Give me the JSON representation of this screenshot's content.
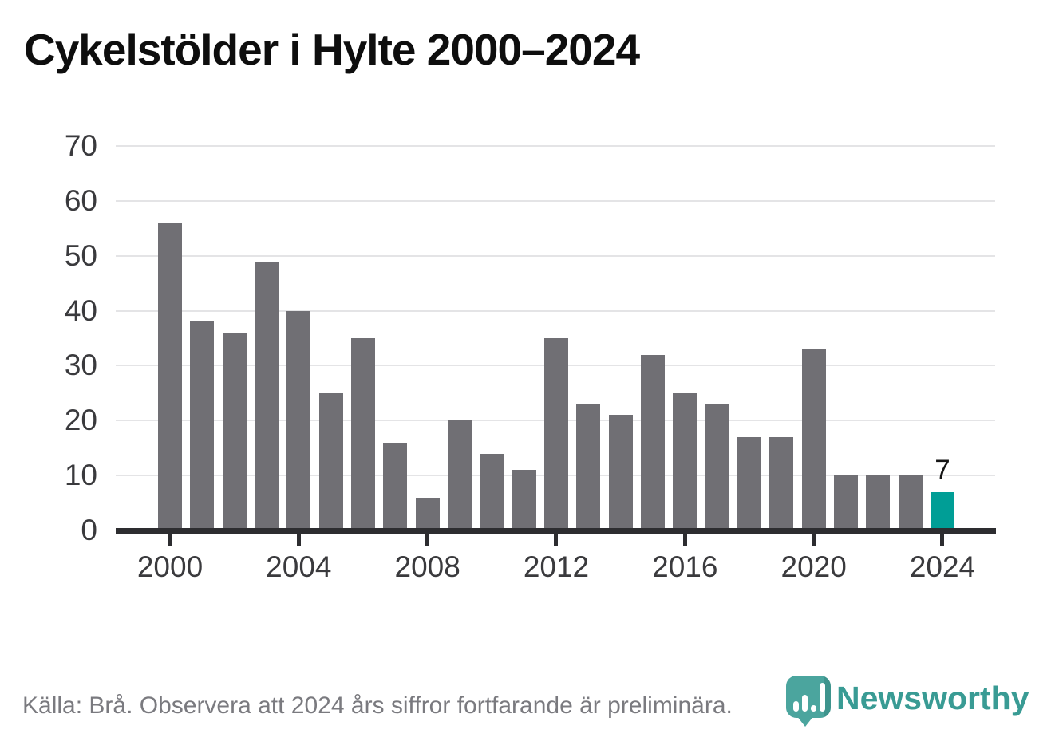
{
  "title": "Cykelstölder i Hylte 2000–2024",
  "footer": {
    "source_note": "Källa: Brå. Observera att 2024 års siffror fortfarande är preliminära."
  },
  "branding": {
    "logo_text": "Newsworthy",
    "logo_icon": "bar-chart-pin-icon",
    "logo_color": "#399b94",
    "badge_color": "#4ba59e"
  },
  "colors": {
    "bar": "#706f74",
    "highlight": "#009e96",
    "axis": "#2d2d30",
    "grid": "#e4e4e6",
    "axis_text": "#3a3a3d",
    "footer_text": "#7a7a7f",
    "title_text": "#0e0e0e"
  },
  "chart_data": {
    "type": "bar",
    "title": "Cykelstölder i Hylte 2000–2024",
    "categories": [
      "2000",
      "2001",
      "2002",
      "2003",
      "2004",
      "2005",
      "2006",
      "2007",
      "2008",
      "2009",
      "2010",
      "2011",
      "2012",
      "2013",
      "2014",
      "2015",
      "2016",
      "2017",
      "2018",
      "2019",
      "2020",
      "2021",
      "2022",
      "2023",
      "2024"
    ],
    "values": [
      56,
      38,
      36,
      49,
      40,
      25,
      35,
      16,
      6,
      20,
      14,
      11,
      35,
      23,
      21,
      32,
      25,
      23,
      17,
      17,
      33,
      10,
      10,
      10,
      7
    ],
    "xlabel": "",
    "ylabel": "",
    "x_tick_labels": [
      "2000",
      "2004",
      "2008",
      "2012",
      "2016",
      "2020",
      "2024"
    ],
    "y_ticks": [
      0,
      10,
      20,
      30,
      40,
      50,
      60,
      70
    ],
    "ylim": [
      0,
      70
    ],
    "grid": "horizontal",
    "legend": "none",
    "bar_color": "#706f74",
    "highlight": {
      "index": 24,
      "label": "7",
      "color": "#009e96"
    }
  }
}
